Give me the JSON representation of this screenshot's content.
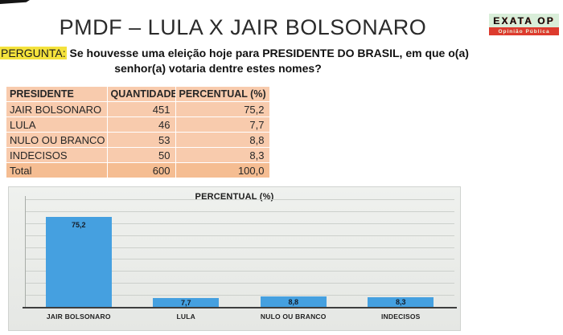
{
  "page": {
    "title": "PMDF – LULA X JAIR BOLSONARO"
  },
  "logo": {
    "name": "EXATA OP",
    "subtitle": "Opinião Pública"
  },
  "question": {
    "label": "PERGUNTA:",
    "line1": "Se houvesse uma eleição hoje para PRESIDENTE DO BRASIL, em que o(a)",
    "line2": "senhor(a) votaria dentre estes nomes?"
  },
  "table": {
    "columns": [
      "PRESIDENTE",
      "QUANTIDADE",
      "PERCENTUAL (%)"
    ],
    "rows": [
      [
        "JAIR BOLSONARO",
        "451",
        "75,2"
      ],
      [
        "LULA",
        "46",
        "7,7"
      ],
      [
        "NULO OU BRANCO",
        "53",
        "8,8"
      ],
      [
        "INDECISOS",
        "50",
        "8,3"
      ]
    ],
    "total": [
      "Total",
      "600",
      "100,0"
    ]
  },
  "chart_data": {
    "type": "bar",
    "title": "PERCENTUAL (%)",
    "categories": [
      "JAIR BOLSONARO",
      "LULA",
      "NULO OU BRANCO",
      "INDECISOS"
    ],
    "values": [
      75.2,
      7.7,
      8.8,
      8.3
    ],
    "value_labels": [
      "75,2",
      "7,7",
      "8,8",
      "8,3"
    ],
    "ylim": [
      0,
      90
    ],
    "grid": true,
    "gridline_step": 10,
    "legend": "none",
    "bar_color": "#45a0e0"
  },
  "colors": {
    "bar_blue": "#45a0e0",
    "table_fill": "#f8cbad",
    "table_total_fill": "#f5bd92",
    "highlight_yellow": "#f4e23c",
    "logo_green_bg": "#d9eed9",
    "logo_red_bg": "#dd3b2e"
  }
}
